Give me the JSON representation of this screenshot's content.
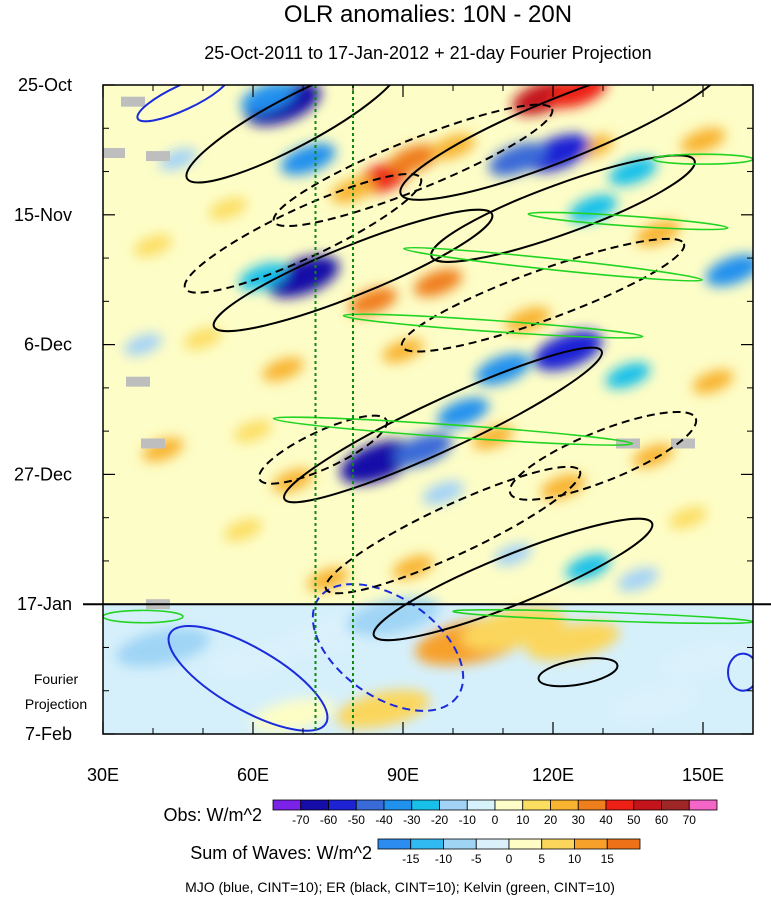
{
  "chart_data": {
    "type": "heatmap",
    "title": "OLR anomalies: 10N - 20N",
    "subtitle": "25-Oct-2011 to 17-Jan-2012 + 21-day Fourier Projection",
    "x_axis": {
      "range": [
        30,
        160
      ],
      "ticks": [
        30,
        60,
        90,
        120,
        150
      ],
      "tick_labels": [
        "30E",
        "60E",
        "90E",
        "120E",
        "150E"
      ]
    },
    "y_axis": {
      "range_days": [
        0,
        105
      ],
      "tick_days": [
        0,
        21,
        42,
        63,
        84,
        105
      ],
      "tick_labels": [
        "25-Oct",
        "15-Nov",
        "6-Dec",
        "27-Dec",
        "17-Jan",
        "7-Feb"
      ]
    },
    "projection_label": [
      "Fourier",
      "Projection"
    ],
    "projection_start_day": 84,
    "reference_lines_lon": [
      72.5,
      80
    ],
    "obs_colorbar": {
      "label": "Obs: W/m^2",
      "levels": [
        "-70",
        "-60",
        "-50",
        "-40",
        "-30",
        "-20",
        "-10",
        "0",
        "10",
        "20",
        "30",
        "40",
        "50",
        "60",
        "70"
      ],
      "colors": [
        "#7b22e8",
        "#160ca8",
        "#1d22d4",
        "#3a6ad8",
        "#2191ee",
        "#18c0ea",
        "#a3d2f7",
        "#d6f3fb",
        "#fdfdc7",
        "#fbdd62",
        "#f8b431",
        "#ef7e1c",
        "#ec2015",
        "#c4141b",
        "#9e2626",
        "#f365c6"
      ]
    },
    "waves_colorbar": {
      "label": "Sum of Waves: W/m^2",
      "levels": [
        "-15",
        "-10",
        "-5",
        "0",
        "5",
        "10",
        "15"
      ],
      "colors": [
        "#2c8cf0",
        "#31baf1",
        "#9fd4f5",
        "#daf1fb",
        "#fdfdc5",
        "#fbd65b",
        "#f7a02a",
        "#ef7117"
      ]
    },
    "footnote": "MJO (blue, CINT=10); ER (black, CINT=10); Kelvin (green, CINT=10)",
    "contour_colors": {
      "mjo": "#1a2bdc",
      "er": "#000000",
      "kelvin": "#22d422",
      "ref_line": "#118811"
    },
    "blobs": [
      {
        "lon": 66,
        "day": 3,
        "v": -70
      },
      {
        "lon": 71,
        "day": 12,
        "v": -40
      },
      {
        "lon": 63,
        "day": 2,
        "v": -40
      },
      {
        "lon": 86,
        "day": 15,
        "v": 40
      },
      {
        "lon": 92,
        "day": 12,
        "v": 35
      },
      {
        "lon": 80,
        "day": 17,
        "v": 25
      },
      {
        "lon": 100,
        "day": 10,
        "v": 25
      },
      {
        "lon": 118,
        "day": 2,
        "v": 50
      },
      {
        "lon": 125,
        "day": 1,
        "v": 45
      },
      {
        "lon": 128,
        "day": 10,
        "v": 20
      },
      {
        "lon": 121,
        "day": 11,
        "v": -55
      },
      {
        "lon": 113,
        "day": 12,
        "v": -45
      },
      {
        "lon": 136,
        "day": 14,
        "v": -30
      },
      {
        "lon": 150,
        "day": 9,
        "v": 25
      },
      {
        "lon": 141,
        "day": 24,
        "v": 25
      },
      {
        "lon": 128,
        "day": 20,
        "v": -30
      },
      {
        "lon": 70,
        "day": 31,
        "v": -65
      },
      {
        "lon": 62,
        "day": 31,
        "v": -30
      },
      {
        "lon": 84,
        "day": 35,
        "v": 30
      },
      {
        "lon": 97,
        "day": 32,
        "v": 30
      },
      {
        "lon": 115,
        "day": 38,
        "v": 25
      },
      {
        "lon": 123,
        "day": 43,
        "v": -60
      },
      {
        "lon": 110,
        "day": 46,
        "v": -40
      },
      {
        "lon": 135,
        "day": 47,
        "v": -25
      },
      {
        "lon": 152,
        "day": 48,
        "v": 20
      },
      {
        "lon": 90,
        "day": 43,
        "v": 20
      },
      {
        "lon": 66,
        "day": 46,
        "v": 20
      },
      {
        "lon": 50,
        "day": 41,
        "v": 15
      },
      {
        "lon": 156,
        "day": 30,
        "v": -40
      },
      {
        "lon": 85,
        "day": 61,
        "v": -70
      },
      {
        "lon": 94,
        "day": 59,
        "v": -45
      },
      {
        "lon": 102,
        "day": 53,
        "v": -35
      },
      {
        "lon": 98,
        "day": 66,
        "v": -20
      },
      {
        "lon": 108,
        "day": 57,
        "v": 20
      },
      {
        "lon": 122,
        "day": 65,
        "v": 25
      },
      {
        "lon": 140,
        "day": 60,
        "v": 20
      },
      {
        "lon": 68,
        "day": 64,
        "v": 20
      },
      {
        "lon": 60,
        "day": 56,
        "v": 15
      },
      {
        "lon": 127,
        "day": 78,
        "v": -25
      },
      {
        "lon": 137,
        "day": 80,
        "v": -20
      },
      {
        "lon": 112,
        "day": 76,
        "v": -15
      },
      {
        "lon": 92,
        "day": 78,
        "v": 20
      },
      {
        "lon": 75,
        "day": 80,
        "v": 20
      },
      {
        "lon": 147,
        "day": 70,
        "v": 15
      },
      {
        "lon": 42,
        "day": 59,
        "v": 20
      },
      {
        "lon": 40,
        "day": 26,
        "v": 15
      },
      {
        "lon": 55,
        "day": 20,
        "v": 15
      },
      {
        "lon": 38,
        "day": 42,
        "v": -15
      },
      {
        "lon": 45,
        "day": 12,
        "v": -15
      },
      {
        "lon": 58,
        "day": 72,
        "v": 15
      }
    ],
    "proj_blobs": [
      {
        "lon": 42,
        "day": 91,
        "v": -6
      },
      {
        "lon": 60,
        "day": 93,
        "v": -5
      },
      {
        "lon": 75,
        "day": 89,
        "v": -5
      },
      {
        "lon": 88,
        "day": 86,
        "v": -6
      },
      {
        "lon": 104,
        "day": 90,
        "v": 10
      },
      {
        "lon": 112,
        "day": 88,
        "v": 8
      },
      {
        "lon": 124,
        "day": 90,
        "v": 6
      },
      {
        "lon": 86,
        "day": 101,
        "v": 6
      },
      {
        "lon": 140,
        "day": 100,
        "v": -5
      },
      {
        "lon": 150,
        "day": 93,
        "v": -4
      },
      {
        "lon": 68,
        "day": 102,
        "v": 4
      }
    ],
    "contours": [
      {
        "kind": "mjo",
        "dash": true,
        "lon": 87,
        "day": 91,
        "a_lon": 17,
        "a_day": 8,
        "angle": 35
      },
      {
        "kind": "mjo",
        "dash": false,
        "lon": 59,
        "day": 96,
        "a_lon": 18,
        "a_day": 5,
        "angle": 30
      },
      {
        "kind": "mjo",
        "dash": false,
        "lon": 46,
        "day": 2,
        "a_lon": 10,
        "a_day": 2,
        "angle": -25
      },
      {
        "kind": "mjo",
        "dash": false,
        "lon": 158,
        "day": 95,
        "a_lon": 3,
        "a_day": 3,
        "angle": 0
      },
      {
        "kind": "er",
        "dash": false,
        "lon": 68,
        "day": 6,
        "a_lon": 24,
        "a_day": 4,
        "angle": -28
      },
      {
        "kind": "er",
        "dash": false,
        "lon": 122,
        "day": 7,
        "a_lon": 35,
        "a_day": 5,
        "angle": -22
      },
      {
        "kind": "er",
        "dash": false,
        "lon": 122,
        "day": 20,
        "a_lon": 28,
        "a_day": 4,
        "angle": -20
      },
      {
        "kind": "er",
        "dash": false,
        "lon": 80,
        "day": 30,
        "a_lon": 30,
        "a_day": 4,
        "angle": -22
      },
      {
        "kind": "er",
        "dash": false,
        "lon": 98,
        "day": 55,
        "a_lon": 35,
        "a_day": 4,
        "angle": -25
      },
      {
        "kind": "er",
        "dash": false,
        "lon": 112,
        "day": 80,
        "a_lon": 30,
        "a_day": 4,
        "angle": -22
      },
      {
        "kind": "er",
        "dash": false,
        "lon": 125,
        "day": 95,
        "a_lon": 8,
        "a_day": 2,
        "angle": -10
      },
      {
        "kind": "er",
        "dash": true,
        "lon": 92,
        "day": 13,
        "a_lon": 30,
        "a_day": 4,
        "angle": -22
      },
      {
        "kind": "er",
        "dash": true,
        "lon": 70,
        "day": 24,
        "a_lon": 26,
        "a_day": 4,
        "angle": -25
      },
      {
        "kind": "er",
        "dash": true,
        "lon": 118,
        "day": 34,
        "a_lon": 30,
        "a_day": 4,
        "angle": -20
      },
      {
        "kind": "er",
        "dash": true,
        "lon": 130,
        "day": 60,
        "a_lon": 20,
        "a_day": 4,
        "angle": -22
      },
      {
        "kind": "er",
        "dash": true,
        "lon": 100,
        "day": 72,
        "a_lon": 28,
        "a_day": 4,
        "angle": -25
      },
      {
        "kind": "er",
        "dash": true,
        "lon": 74,
        "day": 59,
        "a_lon": 14,
        "a_day": 3,
        "angle": -25
      },
      {
        "kind": "kelvin",
        "dash": false,
        "lon": 100,
        "day": 56,
        "a_lon": 36,
        "a_day": 1.0,
        "angle": 4
      },
      {
        "kind": "kelvin",
        "dash": false,
        "lon": 108,
        "day": 39,
        "a_lon": 30,
        "a_day": 0.9,
        "angle": 4
      },
      {
        "kind": "kelvin",
        "dash": false,
        "lon": 120,
        "day": 29,
        "a_lon": 30,
        "a_day": 0.9,
        "angle": 6
      },
      {
        "kind": "kelvin",
        "dash": false,
        "lon": 135,
        "day": 22,
        "a_lon": 20,
        "a_day": 0.8,
        "angle": 4
      },
      {
        "kind": "kelvin",
        "dash": false,
        "lon": 150,
        "day": 12,
        "a_lon": 10,
        "a_day": 0.8,
        "angle": 0
      },
      {
        "kind": "kelvin",
        "dash": false,
        "lon": 130,
        "day": 86,
        "a_lon": 30,
        "a_day": 0.7,
        "angle": 2
      },
      {
        "kind": "kelvin",
        "dash": false,
        "lon": 38,
        "day": 86,
        "a_lon": 8,
        "a_day": 1.0,
        "angle": 0
      }
    ],
    "missing_patches": [
      {
        "lon": 36,
        "day": 2.7
      },
      {
        "lon": 32,
        "day": 11
      },
      {
        "lon": 41,
        "day": 11.5
      },
      {
        "lon": 37,
        "day": 48
      },
      {
        "lon": 40,
        "day": 58
      },
      {
        "lon": 41,
        "day": 84
      },
      {
        "lon": 135,
        "day": 58
      },
      {
        "lon": 146,
        "day": 58
      }
    ]
  }
}
